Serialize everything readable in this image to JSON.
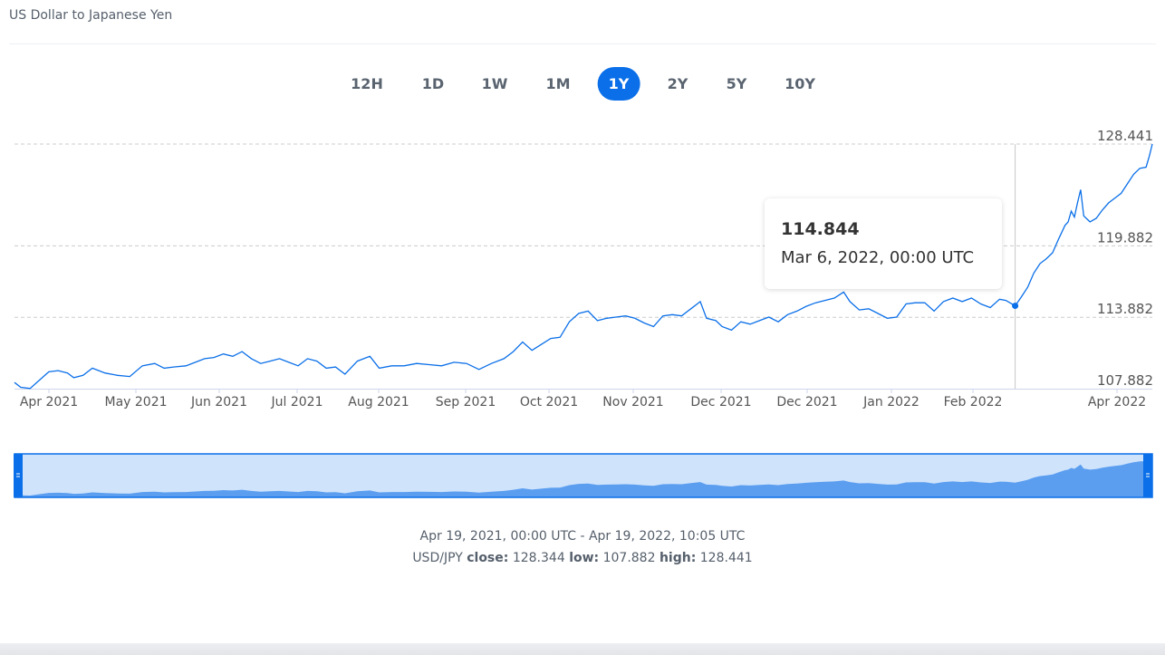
{
  "page": {
    "title": "US Dollar to Japanese Yen"
  },
  "range_tabs": {
    "items": [
      "12H",
      "1D",
      "1W",
      "1M",
      "1Y",
      "2Y",
      "5Y",
      "10Y"
    ],
    "active": "1Y"
  },
  "tooltip": {
    "value": "114.844",
    "date": "Mar 6, 2022, 00:00 UTC"
  },
  "summary": {
    "range": "Apr 19, 2021, 00:00 UTC - Apr 19, 2022, 10:05 UTC",
    "pair": "USD/JPY",
    "close_label": "close:",
    "close": "128.344",
    "low_label": "low:",
    "low": "107.882",
    "high_label": "high:",
    "high": "128.441"
  },
  "colors": {
    "line": "#0a6fe8",
    "nav_fill": "#5b9ef0",
    "nav_bg": "#cfe3fb",
    "grid": "#cccccc",
    "accent": "#0a6fe8"
  },
  "chart_data": {
    "type": "line",
    "title": "US Dollar to Japanese Yen",
    "xlabel": "",
    "ylabel": "",
    "x_ticks": [
      "Apr 2021",
      "May 2021",
      "Jun 2021",
      "Jul 2021",
      "Aug 2021",
      "Sep 2021",
      "Oct 2021",
      "Nov 2021",
      "Dec 2021",
      "Dec 2021",
      "Jan 2022",
      "Feb 2022",
      "Apr 2022"
    ],
    "y_ticks": [
      "128.441",
      "119.882",
      "113.882",
      "107.882"
    ],
    "ylim": [
      107.882,
      128.441
    ],
    "grid": true,
    "series": [
      {
        "points": [
          [
            "2021-04-19",
            108.4
          ],
          [
            "2021-04-21",
            108.0
          ],
          [
            "2021-04-24",
            107.9
          ],
          [
            "2021-04-27",
            108.6
          ],
          [
            "2021-04-30",
            109.3
          ],
          [
            "2021-05-03",
            109.4
          ],
          [
            "2021-05-06",
            109.2
          ],
          [
            "2021-05-08",
            108.8
          ],
          [
            "2021-05-11",
            109.0
          ],
          [
            "2021-05-14",
            109.6
          ],
          [
            "2021-05-18",
            109.2
          ],
          [
            "2021-05-22",
            109.0
          ],
          [
            "2021-05-26",
            108.9
          ],
          [
            "2021-05-30",
            109.8
          ],
          [
            "2021-06-03",
            110.0
          ],
          [
            "2021-06-06",
            109.6
          ],
          [
            "2021-06-09",
            109.7
          ],
          [
            "2021-06-13",
            109.8
          ],
          [
            "2021-06-16",
            110.1
          ],
          [
            "2021-06-19",
            110.4
          ],
          [
            "2021-06-22",
            110.5
          ],
          [
            "2021-06-25",
            110.8
          ],
          [
            "2021-06-28",
            110.6
          ],
          [
            "2021-07-01",
            111.0
          ],
          [
            "2021-07-04",
            110.4
          ],
          [
            "2021-07-07",
            110.0
          ],
          [
            "2021-07-10",
            110.2
          ],
          [
            "2021-07-13",
            110.4
          ],
          [
            "2021-07-16",
            110.1
          ],
          [
            "2021-07-19",
            109.8
          ],
          [
            "2021-07-22",
            110.4
          ],
          [
            "2021-07-25",
            110.2
          ],
          [
            "2021-07-28",
            109.6
          ],
          [
            "2021-07-31",
            109.7
          ],
          [
            "2021-08-03",
            109.1
          ],
          [
            "2021-08-07",
            110.2
          ],
          [
            "2021-08-11",
            110.6
          ],
          [
            "2021-08-14",
            109.6
          ],
          [
            "2021-08-18",
            109.8
          ],
          [
            "2021-08-22",
            109.8
          ],
          [
            "2021-08-26",
            110.0
          ],
          [
            "2021-08-30",
            109.9
          ],
          [
            "2021-09-03",
            109.8
          ],
          [
            "2021-09-07",
            110.1
          ],
          [
            "2021-09-11",
            110.0
          ],
          [
            "2021-09-15",
            109.5
          ],
          [
            "2021-09-19",
            110.0
          ],
          [
            "2021-09-23",
            110.4
          ],
          [
            "2021-09-26",
            111.0
          ],
          [
            "2021-09-29",
            111.8
          ],
          [
            "2021-10-02",
            111.1
          ],
          [
            "2021-10-05",
            111.6
          ],
          [
            "2021-10-08",
            112.1
          ],
          [
            "2021-10-11",
            112.2
          ],
          [
            "2021-10-14",
            113.5
          ],
          [
            "2021-10-17",
            114.2
          ],
          [
            "2021-10-20",
            114.4
          ],
          [
            "2021-10-23",
            113.6
          ],
          [
            "2021-10-26",
            113.8
          ],
          [
            "2021-10-29",
            113.9
          ],
          [
            "2021-11-01",
            114.0
          ],
          [
            "2021-11-04",
            113.8
          ],
          [
            "2021-11-07",
            113.4
          ],
          [
            "2021-11-10",
            113.1
          ],
          [
            "2021-11-13",
            114.0
          ],
          [
            "2021-11-16",
            114.1
          ],
          [
            "2021-11-19",
            114.0
          ],
          [
            "2021-11-22",
            114.6
          ],
          [
            "2021-11-25",
            115.2
          ],
          [
            "2021-11-27",
            113.8
          ],
          [
            "2021-11-30",
            113.6
          ],
          [
            "2021-12-02",
            113.1
          ],
          [
            "2021-12-05",
            112.8
          ],
          [
            "2021-12-08",
            113.5
          ],
          [
            "2021-12-11",
            113.3
          ],
          [
            "2021-12-14",
            113.6
          ],
          [
            "2021-12-17",
            113.9
          ],
          [
            "2021-12-20",
            113.5
          ],
          [
            "2021-12-23",
            114.1
          ],
          [
            "2021-12-26",
            114.4
          ],
          [
            "2021-12-29",
            114.8
          ],
          [
            "2022-01-01",
            115.1
          ],
          [
            "2022-01-04",
            115.3
          ],
          [
            "2022-01-07",
            115.5
          ],
          [
            "2022-01-10",
            116.0
          ],
          [
            "2022-01-12",
            115.2
          ],
          [
            "2022-01-15",
            114.5
          ],
          [
            "2022-01-18",
            114.6
          ],
          [
            "2022-01-21",
            114.2
          ],
          [
            "2022-01-24",
            113.8
          ],
          [
            "2022-01-27",
            113.9
          ],
          [
            "2022-01-30",
            115.0
          ],
          [
            "2022-02-02",
            115.1
          ],
          [
            "2022-02-05",
            115.1
          ],
          [
            "2022-02-08",
            114.4
          ],
          [
            "2022-02-11",
            115.2
          ],
          [
            "2022-02-14",
            115.5
          ],
          [
            "2022-02-17",
            115.2
          ],
          [
            "2022-02-20",
            115.5
          ],
          [
            "2022-02-23",
            115.0
          ],
          [
            "2022-02-26",
            114.7
          ],
          [
            "2022-03-01",
            115.4
          ],
          [
            "2022-03-03",
            115.3
          ],
          [
            "2022-03-06",
            114.84
          ],
          [
            "2022-03-08",
            115.6
          ],
          [
            "2022-03-10",
            116.4
          ],
          [
            "2022-03-12",
            117.6
          ],
          [
            "2022-03-14",
            118.4
          ],
          [
            "2022-03-16",
            118.8
          ],
          [
            "2022-03-18",
            119.3
          ],
          [
            "2022-03-20",
            120.5
          ],
          [
            "2022-03-22",
            121.6
          ],
          [
            "2022-03-23",
            121.9
          ],
          [
            "2022-03-24",
            122.8
          ],
          [
            "2022-03-25",
            122.3
          ],
          [
            "2022-03-26",
            123.5
          ],
          [
            "2022-03-27",
            124.6
          ],
          [
            "2022-03-28",
            122.4
          ],
          [
            "2022-03-30",
            121.9
          ],
          [
            "2022-04-01",
            122.2
          ],
          [
            "2022-04-03",
            122.9
          ],
          [
            "2022-04-05",
            123.5
          ],
          [
            "2022-04-07",
            123.9
          ],
          [
            "2022-04-09",
            124.3
          ],
          [
            "2022-04-11",
            125.1
          ],
          [
            "2022-04-13",
            125.9
          ],
          [
            "2022-04-15",
            126.4
          ],
          [
            "2022-04-17",
            126.5
          ],
          [
            "2022-04-18",
            127.4
          ],
          [
            "2022-04-19",
            128.441
          ]
        ]
      }
    ]
  }
}
